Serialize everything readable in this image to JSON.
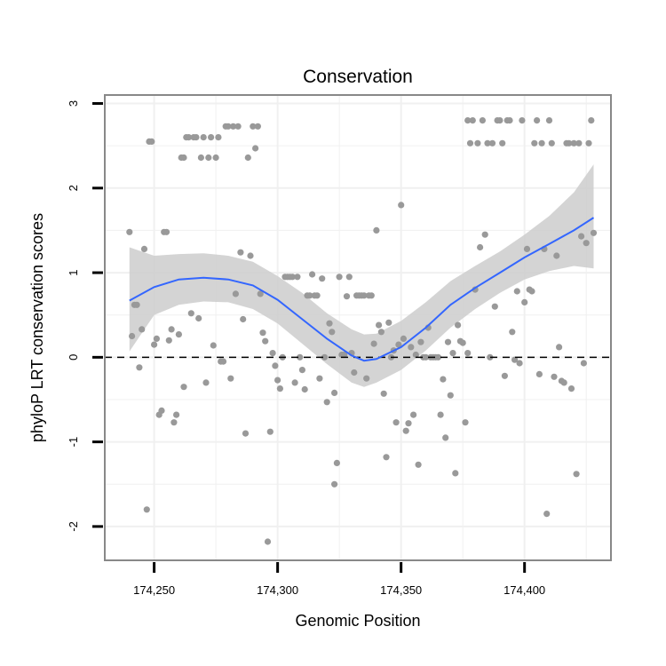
{
  "chart_data": {
    "type": "scatter",
    "title": "Conservation",
    "xlabel": "Genomic Position",
    "ylabel": "phyloP LRT conservation scores",
    "xlim": [
      174230,
      174435
    ],
    "ylim": [
      -2.4,
      3.1
    ],
    "x_ticks": [
      {
        "value": 174250,
        "label": "174,250"
      },
      {
        "value": 174300,
        "label": "174,300"
      },
      {
        "value": 174350,
        "label": "174,350"
      },
      {
        "value": 174400,
        "label": "174,400"
      }
    ],
    "y_ticks": [
      {
        "value": 3,
        "label": "3"
      },
      {
        "value": 2,
        "label": "2"
      },
      {
        "value": 1,
        "label": "1"
      },
      {
        "value": 0,
        "label": "0"
      },
      {
        "value": -1,
        "label": "-1"
      },
      {
        "value": -2,
        "label": "-2"
      }
    ],
    "grid": true,
    "reference_line": {
      "y": 0,
      "style": "dashed"
    },
    "colors": {
      "points": "#999999",
      "smooth": "#3366ff",
      "band": "#cccccc",
      "border": "#888888"
    },
    "points": [
      [
        174240,
        1.48
      ],
      [
        174241,
        0.25
      ],
      [
        174242,
        0.62
      ],
      [
        174243,
        0.62
      ],
      [
        174244,
        -0.12
      ],
      [
        174245,
        0.33
      ],
      [
        174246,
        1.28
      ],
      [
        174247,
        -1.8
      ],
      [
        174248,
        2.55
      ],
      [
        174249,
        2.55
      ],
      [
        174250,
        0.15
      ],
      [
        174251,
        0.22
      ],
      [
        174252,
        -0.68
      ],
      [
        174253,
        -0.63
      ],
      [
        174254,
        1.48
      ],
      [
        174255,
        1.48
      ],
      [
        174256,
        0.2
      ],
      [
        174257,
        0.33
      ],
      [
        174258,
        -0.77
      ],
      [
        174259,
        -0.68
      ],
      [
        174260,
        0.27
      ],
      [
        174261,
        2.36
      ],
      [
        174262,
        2.36
      ],
      [
        174262,
        -0.35
      ],
      [
        174263,
        2.6
      ],
      [
        174264,
        2.6
      ],
      [
        174265,
        0.52
      ],
      [
        174266,
        2.6
      ],
      [
        174267,
        2.6
      ],
      [
        174268,
        0.46
      ],
      [
        174269,
        2.36
      ],
      [
        174270,
        2.6
      ],
      [
        174271,
        -0.3
      ],
      [
        174272,
        2.36
      ],
      [
        174273,
        2.6
      ],
      [
        174274,
        0.14
      ],
      [
        174275,
        2.36
      ],
      [
        174276,
        2.6
      ],
      [
        174277,
        -0.05
      ],
      [
        174278,
        -0.05
      ],
      [
        174279,
        2.73
      ],
      [
        174280,
        2.73
      ],
      [
        174281,
        -0.25
      ],
      [
        174282,
        2.73
      ],
      [
        174283,
        0.75
      ],
      [
        174284,
        2.73
      ],
      [
        174285,
        1.24
      ],
      [
        174286,
        0.45
      ],
      [
        174287,
        -0.9
      ],
      [
        174288,
        2.36
      ],
      [
        174289,
        1.2
      ],
      [
        174290,
        2.73
      ],
      [
        174291,
        2.47
      ],
      [
        174292,
        2.73
      ],
      [
        174293,
        0.75
      ],
      [
        174294,
        0.29
      ],
      [
        174295,
        0.19
      ],
      [
        174296,
        -2.18
      ],
      [
        174297,
        -0.88
      ],
      [
        174298,
        0.05
      ],
      [
        174299,
        -0.1
      ],
      [
        174300,
        -0.27
      ],
      [
        174301,
        -0.37
      ],
      [
        174302,
        0.0
      ],
      [
        174303,
        0.95
      ],
      [
        174304,
        0.95
      ],
      [
        174305,
        0.95
      ],
      [
        174306,
        0.95
      ],
      [
        174307,
        -0.3
      ],
      [
        174308,
        0.95
      ],
      [
        174309,
        0.0
      ],
      [
        174310,
        -0.15
      ],
      [
        174311,
        -0.38
      ],
      [
        174312,
        0.73
      ],
      [
        174313,
        0.73
      ],
      [
        174314,
        0.98
      ],
      [
        174315,
        0.73
      ],
      [
        174316,
        0.73
      ],
      [
        174317,
        -0.25
      ],
      [
        174318,
        0.93
      ],
      [
        174319,
        0.0
      ],
      [
        174320,
        -0.53
      ],
      [
        174321,
        0.4
      ],
      [
        174322,
        0.3
      ],
      [
        174323,
        -0.42
      ],
      [
        174323,
        -1.5
      ],
      [
        174324,
        -1.25
      ],
      [
        174325,
        0.95
      ],
      [
        174326,
        0.03
      ],
      [
        174327,
        0.03
      ],
      [
        174328,
        0.72
      ],
      [
        174329,
        0.95
      ],
      [
        174330,
        0.05
      ],
      [
        174331,
        -0.18
      ],
      [
        174332,
        0.73
      ],
      [
        174333,
        0.73
      ],
      [
        174334,
        0.73
      ],
      [
        174335,
        0.73
      ],
      [
        174336,
        -0.25
      ],
      [
        174337,
        0.73
      ],
      [
        174338,
        0.73
      ],
      [
        174339,
        0.16
      ],
      [
        174340,
        1.5
      ],
      [
        174341,
        0.38
      ],
      [
        174342,
        0.3
      ],
      [
        174343,
        -0.43
      ],
      [
        174344,
        -1.18
      ],
      [
        174345,
        0.41
      ],
      [
        174346,
        0.0
      ],
      [
        174347,
        0.08
      ],
      [
        174348,
        -0.77
      ],
      [
        174349,
        0.15
      ],
      [
        174350,
        1.8
      ],
      [
        174351,
        0.22
      ],
      [
        174352,
        -0.87
      ],
      [
        174353,
        -0.78
      ],
      [
        174354,
        0.12
      ],
      [
        174355,
        -0.68
      ],
      [
        174356,
        0.03
      ],
      [
        174357,
        -1.27
      ],
      [
        174358,
        0.18
      ],
      [
        174359,
        0.0
      ],
      [
        174360,
        0.0
      ],
      [
        174361,
        0.35
      ],
      [
        174362,
        0.0
      ],
      [
        174363,
        0.0
      ],
      [
        174364,
        0.0
      ],
      [
        174365,
        0.0
      ],
      [
        174366,
        -0.68
      ],
      [
        174367,
        -0.26
      ],
      [
        174368,
        -0.95
      ],
      [
        174369,
        0.18
      ],
      [
        174370,
        -0.45
      ],
      [
        174371,
        0.05
      ],
      [
        174372,
        -1.37
      ],
      [
        174373,
        0.38
      ],
      [
        174374,
        0.19
      ],
      [
        174375,
        0.17
      ],
      [
        174376,
        -0.77
      ],
      [
        174377,
        2.8
      ],
      [
        174377,
        0.05
      ],
      [
        174378,
        2.53
      ],
      [
        174379,
        2.8
      ],
      [
        174380,
        0.8
      ],
      [
        174381,
        2.53
      ],
      [
        174382,
        1.3
      ],
      [
        174383,
        2.8
      ],
      [
        174384,
        1.45
      ],
      [
        174385,
        2.53
      ],
      [
        174386,
        0.0
      ],
      [
        174387,
        2.53
      ],
      [
        174388,
        0.6
      ],
      [
        174389,
        2.8
      ],
      [
        174390,
        2.8
      ],
      [
        174391,
        2.53
      ],
      [
        174392,
        -0.22
      ],
      [
        174393,
        2.8
      ],
      [
        174394,
        2.8
      ],
      [
        174395,
        0.3
      ],
      [
        174396,
        -0.03
      ],
      [
        174397,
        0.78
      ],
      [
        174398,
        -0.07
      ],
      [
        174399,
        2.8
      ],
      [
        174400,
        0.65
      ],
      [
        174401,
        1.28
      ],
      [
        174402,
        0.8
      ],
      [
        174403,
        0.78
      ],
      [
        174404,
        2.53
      ],
      [
        174405,
        2.8
      ],
      [
        174406,
        -0.2
      ],
      [
        174407,
        2.53
      ],
      [
        174408,
        1.28
      ],
      [
        174409,
        -1.85
      ],
      [
        174410,
        2.8
      ],
      [
        174411,
        2.53
      ],
      [
        174412,
        -0.23
      ],
      [
        174413,
        1.2
      ],
      [
        174414,
        0.12
      ],
      [
        174415,
        -0.28
      ],
      [
        174416,
        -0.3
      ],
      [
        174417,
        2.53
      ],
      [
        174418,
        2.53
      ],
      [
        174419,
        -0.37
      ],
      [
        174420,
        2.53
      ],
      [
        174421,
        -1.38
      ],
      [
        174422,
        2.53
      ],
      [
        174423,
        1.43
      ],
      [
        174424,
        -0.07
      ],
      [
        174425,
        1.35
      ],
      [
        174426,
        2.53
      ],
      [
        174427,
        2.8
      ],
      [
        174428,
        1.47
      ]
    ],
    "smooth": {
      "x": [
        174240,
        174250,
        174260,
        174270,
        174280,
        174290,
        174300,
        174310,
        174320,
        174330,
        174335,
        174340,
        174350,
        174360,
        174370,
        174380,
        174390,
        174400,
        174410,
        174420,
        174428
      ],
      "y": [
        0.67,
        0.83,
        0.92,
        0.94,
        0.92,
        0.85,
        0.68,
        0.45,
        0.22,
        0.02,
        -0.04,
        -0.02,
        0.12,
        0.35,
        0.62,
        0.82,
        1.0,
        1.18,
        1.34,
        1.5,
        1.65
      ],
      "lower": [
        0.07,
        0.5,
        0.62,
        0.66,
        0.65,
        0.57,
        0.4,
        0.16,
        -0.08,
        -0.3,
        -0.35,
        -0.3,
        -0.15,
        0.08,
        0.35,
        0.57,
        0.76,
        0.92,
        1.02,
        1.08,
        1.05
      ],
      "upper": [
        1.3,
        1.2,
        1.22,
        1.23,
        1.2,
        1.13,
        0.96,
        0.76,
        0.52,
        0.33,
        0.27,
        0.28,
        0.43,
        0.65,
        0.9,
        1.08,
        1.25,
        1.45,
        1.67,
        1.95,
        2.28
      ]
    }
  }
}
